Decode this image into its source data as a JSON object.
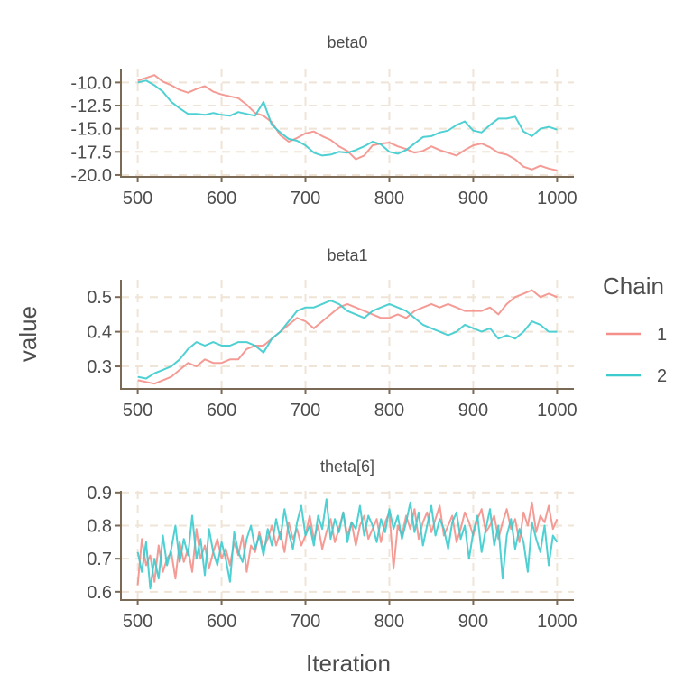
{
  "chart_data": {
    "type": "line",
    "x_label": "Iteration",
    "y_label": "value",
    "legend": {
      "title": "Chain",
      "entries": [
        {
          "label": "1",
          "color": "#f4908a"
        },
        {
          "label": "2",
          "color": "#3ccbce"
        }
      ],
      "placement": "right"
    },
    "grid": true,
    "panels": [
      {
        "title": "beta0",
        "xlim": [
          480,
          1020
        ],
        "x_ticks": [
          "500",
          "600",
          "700",
          "800",
          "900",
          "1000"
        ],
        "ylim": [
          -20.2,
          -8.5
        ],
        "y_ticks": [
          "-10.0",
          "-12.5",
          "-15.0",
          "-17.5",
          "-20.0"
        ],
        "y_tick_values": [
          -10.0,
          -12.5,
          -15.0,
          -17.5,
          -20.0
        ],
        "series": [
          {
            "name": "1",
            "x": [
              500,
              510,
              520,
              530,
              540,
              550,
              560,
              570,
              580,
              590,
              600,
              610,
              620,
              630,
              640,
              650,
              660,
              670,
              680,
              690,
              700,
              710,
              720,
              730,
              740,
              750,
              760,
              770,
              780,
              790,
              800,
              810,
              820,
              830,
              840,
              850,
              860,
              870,
              880,
              890,
              900,
              910,
              920,
              930,
              940,
              950,
              960,
              970,
              980,
              990,
              1000
            ],
            "y": [
              -9.8,
              -9.5,
              -9.2,
              -9.9,
              -10.3,
              -10.8,
              -11.1,
              -10.7,
              -10.4,
              -11.0,
              -11.3,
              -11.5,
              -11.7,
              -12.4,
              -13.3,
              -13.6,
              -14.3,
              -15.7,
              -16.4,
              -16.0,
              -15.5,
              -15.3,
              -15.8,
              -16.2,
              -16.9,
              -17.4,
              -18.3,
              -17.9,
              -16.8,
              -16.6,
              -16.5,
              -16.9,
              -17.2,
              -17.6,
              -17.4,
              -16.9,
              -17.3,
              -17.6,
              -17.9,
              -17.3,
              -16.8,
              -16.6,
              -17.0,
              -17.6,
              -17.8,
              -18.3,
              -19.1,
              -19.4,
              -19.0,
              -19.3,
              -19.5
            ]
          },
          {
            "name": "2",
            "x": [
              500,
              510,
              520,
              530,
              540,
              550,
              560,
              570,
              580,
              590,
              600,
              610,
              620,
              630,
              640,
              650,
              660,
              670,
              680,
              690,
              700,
              710,
              720,
              730,
              740,
              750,
              760,
              770,
              780,
              790,
              800,
              810,
              820,
              830,
              840,
              850,
              860,
              870,
              880,
              890,
              900,
              910,
              920,
              930,
              940,
              950,
              960,
              970,
              980,
              990,
              1000
            ],
            "y": [
              -10.0,
              -9.8,
              -10.3,
              -11.0,
              -12.1,
              -12.8,
              -13.4,
              -13.4,
              -13.5,
              -13.3,
              -13.5,
              -13.6,
              -13.2,
              -13.4,
              -13.6,
              -12.1,
              -14.6,
              -15.4,
              -16.1,
              -16.3,
              -16.8,
              -17.6,
              -17.9,
              -17.8,
              -17.5,
              -17.6,
              -17.3,
              -16.9,
              -16.4,
              -16.7,
              -17.5,
              -17.7,
              -17.3,
              -16.6,
              -15.9,
              -15.8,
              -15.4,
              -15.2,
              -14.6,
              -14.2,
              -15.2,
              -15.4,
              -14.6,
              -13.9,
              -13.9,
              -13.7,
              -15.3,
              -15.8,
              -15.0,
              -14.8,
              -15.1
            ]
          }
        ]
      },
      {
        "title": "beta1",
        "xlim": [
          480,
          1020
        ],
        "x_ticks": [
          "500",
          "600",
          "700",
          "800",
          "900",
          "1000"
        ],
        "ylim": [
          0.235,
          0.55
        ],
        "y_ticks": [
          "0.5",
          "0.4",
          "0.3"
        ],
        "y_tick_values": [
          0.5,
          0.4,
          0.3
        ],
        "series": [
          {
            "name": "1",
            "x": [
              500,
              510,
              520,
              530,
              540,
              550,
              560,
              570,
              580,
              590,
              600,
              610,
              620,
              630,
              640,
              650,
              660,
              670,
              680,
              690,
              700,
              710,
              720,
              730,
              740,
              750,
              760,
              770,
              780,
              790,
              800,
              810,
              820,
              830,
              840,
              850,
              860,
              870,
              880,
              890,
              900,
              910,
              920,
              930,
              940,
              950,
              960,
              970,
              980,
              990,
              1000
            ],
            "y": [
              0.26,
              0.255,
              0.25,
              0.26,
              0.27,
              0.29,
              0.31,
              0.3,
              0.32,
              0.31,
              0.31,
              0.32,
              0.32,
              0.35,
              0.36,
              0.36,
              0.38,
              0.4,
              0.42,
              0.44,
              0.43,
              0.41,
              0.43,
              0.45,
              0.47,
              0.48,
              0.47,
              0.46,
              0.45,
              0.44,
              0.44,
              0.45,
              0.44,
              0.46,
              0.47,
              0.48,
              0.47,
              0.48,
              0.47,
              0.46,
              0.46,
              0.46,
              0.47,
              0.45,
              0.48,
              0.5,
              0.51,
              0.52,
              0.5,
              0.51,
              0.5
            ]
          },
          {
            "name": "2",
            "x": [
              500,
              510,
              520,
              530,
              540,
              550,
              560,
              570,
              580,
              590,
              600,
              610,
              620,
              630,
              640,
              650,
              660,
              670,
              680,
              690,
              700,
              710,
              720,
              730,
              740,
              750,
              760,
              770,
              780,
              790,
              800,
              810,
              820,
              830,
              840,
              850,
              860,
              870,
              880,
              890,
              900,
              910,
              920,
              930,
              940,
              950,
              960,
              970,
              980,
              990,
              1000
            ],
            "y": [
              0.27,
              0.265,
              0.28,
              0.29,
              0.3,
              0.32,
              0.35,
              0.37,
              0.36,
              0.37,
              0.36,
              0.36,
              0.37,
              0.37,
              0.36,
              0.34,
              0.38,
              0.4,
              0.43,
              0.46,
              0.47,
              0.47,
              0.48,
              0.49,
              0.48,
              0.46,
              0.45,
              0.44,
              0.46,
              0.47,
              0.48,
              0.47,
              0.46,
              0.44,
              0.42,
              0.41,
              0.4,
              0.39,
              0.4,
              0.42,
              0.41,
              0.4,
              0.41,
              0.38,
              0.39,
              0.38,
              0.4,
              0.43,
              0.42,
              0.4,
              0.4
            ]
          }
        ]
      },
      {
        "title": "theta[6]",
        "xlim": [
          480,
          1020
        ],
        "x_ticks": [
          "500",
          "600",
          "700",
          "800",
          "900",
          "1000"
        ],
        "ylim": [
          0.575,
          0.905
        ],
        "y_ticks": [
          "0.9",
          "0.8",
          "0.7",
          "0.6"
        ],
        "y_tick_values": [
          0.9,
          0.8,
          0.7,
          0.6
        ],
        "series": [
          {
            "name": "1",
            "x": [
              500,
              505,
              510,
              515,
              520,
              525,
              530,
              535,
              540,
              545,
              550,
              555,
              560,
              565,
              570,
              575,
              580,
              585,
              590,
              595,
              600,
              605,
              610,
              615,
              620,
              625,
              630,
              635,
              640,
              645,
              650,
              655,
              660,
              665,
              670,
              675,
              680,
              685,
              690,
              695,
              700,
              705,
              710,
              715,
              720,
              725,
              730,
              735,
              740,
              745,
              750,
              755,
              760,
              765,
              770,
              775,
              780,
              785,
              790,
              795,
              800,
              805,
              810,
              815,
              820,
              825,
              830,
              835,
              840,
              845,
              850,
              855,
              860,
              865,
              870,
              875,
              880,
              885,
              890,
              895,
              900,
              905,
              910,
              915,
              920,
              925,
              930,
              935,
              940,
              945,
              950,
              955,
              960,
              965,
              970,
              975,
              980,
              985,
              990,
              995,
              1000
            ],
            "y": [
              0.62,
              0.76,
              0.68,
              0.71,
              0.63,
              0.74,
              0.66,
              0.7,
              0.72,
              0.64,
              0.75,
              0.69,
              0.73,
              0.66,
              0.79,
              0.7,
              0.74,
              0.67,
              0.72,
              0.76,
              0.7,
              0.73,
              0.68,
              0.75,
              0.71,
              0.77,
              0.66,
              0.74,
              0.72,
              0.78,
              0.73,
              0.76,
              0.8,
              0.74,
              0.78,
              0.72,
              0.81,
              0.76,
              0.79,
              0.74,
              0.77,
              0.83,
              0.76,
              0.8,
              0.73,
              0.78,
              0.82,
              0.75,
              0.79,
              0.84,
              0.77,
              0.81,
              0.74,
              0.8,
              0.83,
              0.76,
              0.79,
              0.82,
              0.75,
              0.81,
              0.84,
              0.67,
              0.8,
              0.77,
              0.83,
              0.79,
              0.85,
              0.76,
              0.81,
              0.84,
              0.78,
              0.82,
              0.86,
              0.77,
              0.8,
              0.83,
              0.75,
              0.79,
              0.84,
              0.81,
              0.77,
              0.82,
              0.85,
              0.78,
              0.8,
              0.83,
              0.76,
              0.81,
              0.85,
              0.79,
              0.82,
              0.75,
              0.84,
              0.8,
              0.87,
              0.78,
              0.83,
              0.81,
              0.86,
              0.79,
              0.82
            ]
          },
          {
            "name": "2",
            "x": [
              500,
              505,
              510,
              515,
              520,
              525,
              530,
              535,
              540,
              545,
              550,
              555,
              560,
              565,
              570,
              575,
              580,
              585,
              590,
              595,
              600,
              605,
              610,
              615,
              620,
              625,
              630,
              635,
              640,
              645,
              650,
              655,
              660,
              665,
              670,
              675,
              680,
              685,
              690,
              695,
              700,
              705,
              710,
              715,
              720,
              725,
              730,
              735,
              740,
              745,
              750,
              755,
              760,
              765,
              770,
              775,
              780,
              785,
              790,
              795,
              800,
              805,
              810,
              815,
              820,
              825,
              830,
              835,
              840,
              845,
              850,
              855,
              860,
              865,
              870,
              875,
              880,
              885,
              890,
              895,
              900,
              905,
              910,
              915,
              920,
              925,
              930,
              935,
              940,
              945,
              950,
              955,
              960,
              965,
              970,
              975,
              980,
              985,
              990,
              995,
              1000
            ],
            "y": [
              0.72,
              0.66,
              0.75,
              0.61,
              0.7,
              0.64,
              0.77,
              0.68,
              0.73,
              0.8,
              0.69,
              0.76,
              0.71,
              0.83,
              0.7,
              0.76,
              0.65,
              0.79,
              0.72,
              0.68,
              0.75,
              0.7,
              0.63,
              0.78,
              0.72,
              0.69,
              0.76,
              0.8,
              0.73,
              0.77,
              0.71,
              0.79,
              0.74,
              0.82,
              0.76,
              0.85,
              0.78,
              0.73,
              0.81,
              0.86,
              0.77,
              0.8,
              0.74,
              0.83,
              0.79,
              0.88,
              0.76,
              0.82,
              0.78,
              0.84,
              0.75,
              0.81,
              0.79,
              0.86,
              0.77,
              0.83,
              0.8,
              0.75,
              0.82,
              0.78,
              0.85,
              0.79,
              0.83,
              0.76,
              0.81,
              0.87,
              0.78,
              0.84,
              0.74,
              0.8,
              0.86,
              0.77,
              0.82,
              0.79,
              0.73,
              0.81,
              0.84,
              0.76,
              0.8,
              0.7,
              0.78,
              0.83,
              0.72,
              0.79,
              0.85,
              0.74,
              0.8,
              0.64,
              0.77,
              0.82,
              0.73,
              0.79,
              0.75,
              0.66,
              0.81,
              0.76,
              0.72,
              0.8,
              0.68,
              0.77,
              0.75
            ]
          }
        ]
      }
    ]
  }
}
